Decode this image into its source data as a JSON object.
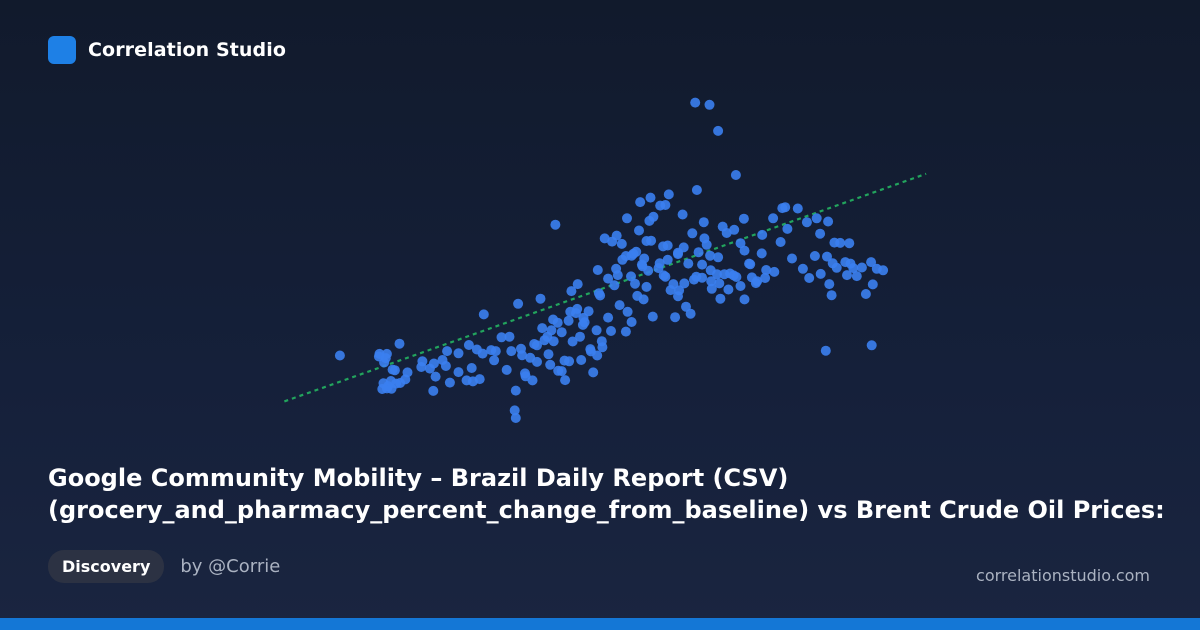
{
  "brand": {
    "name": "Correlation Studio",
    "logo_icon": "blue-rounded-square-logo",
    "accent": "#1e80e6"
  },
  "title": {
    "line1": "Google Community Mobility – Brazil Daily Report (CSV)",
    "line2": "(grocery_and_pharmacy_percent_change_from_baseline) vs Brent Crude Oil Prices:"
  },
  "tag": "Discovery",
  "author": "by @Corrie",
  "site": "correlationstudio.com",
  "colors": {
    "points": "#3b7ff0",
    "trendline": "#22a45d",
    "bottom_bar": "#1477d6"
  },
  "chart_data": {
    "type": "scatter",
    "title": "",
    "xlabel": "",
    "ylabel": "",
    "axes_visible": false,
    "grid": false,
    "xlim": [
      0,
      100
    ],
    "ylim": [
      0,
      100
    ],
    "trendline": {
      "x": [
        0,
        100
      ],
      "y": [
        8.7,
        72.4
      ],
      "style": "dotted"
    },
    "points": [
      [
        4.7,
        19.9
      ],
      [
        11.6,
        20.4
      ],
      [
        12.9,
        20.4
      ],
      [
        12.4,
        17.7
      ],
      [
        13.9,
        15.5
      ],
      [
        11.5,
        19.6
      ],
      [
        12.7,
        19.1
      ],
      [
        15.1,
        23.6
      ],
      [
        16.5,
        14.6
      ],
      [
        14.3,
        15.3
      ],
      [
        19.1,
        18.1
      ],
      [
        21.4,
        13.3
      ],
      [
        23.9,
        11.4
      ],
      [
        23.2,
        16.6
      ],
      [
        21.0,
        8.8
      ],
      [
        25.4,
        14.7
      ],
      [
        27.7,
        16.0
      ],
      [
        29.6,
        20.5
      ],
      [
        29.1,
        12.5
      ],
      [
        27.9,
        11.8
      ],
      [
        31.6,
        18.4
      ],
      [
        33.8,
        15.4
      ],
      [
        31.9,
        21.3
      ],
      [
        34.3,
        25.8
      ],
      [
        37.0,
        14.3
      ],
      [
        39.1,
        17.9
      ],
      [
        36.5,
        20.0
      ],
      [
        35.4,
        8.9
      ],
      [
        38.3,
        12.1
      ],
      [
        41.4,
        17.0
      ],
      [
        42.8,
        15.1
      ],
      [
        40.9,
        25.8
      ],
      [
        44.7,
        18.1
      ],
      [
        45.3,
        24.3
      ],
      [
        43.4,
        15.0
      ],
      [
        44.0,
        12.2
      ],
      [
        41.9,
        31.2
      ],
      [
        47.4,
        30.3
      ],
      [
        46.8,
        18.5
      ],
      [
        49.6,
        19.9
      ],
      [
        45.9,
        33.2
      ],
      [
        48.4,
        21.9
      ],
      [
        50.4,
        24.4
      ],
      [
        48.9,
        14.6
      ],
      [
        52.0,
        27.6
      ],
      [
        53.5,
        35.7
      ],
      [
        51.5,
        31.8
      ],
      [
        54.6,
        27.4
      ],
      [
        54.9,
        33.6
      ],
      [
        57.7,
        37.5
      ],
      [
        55.6,
        30.4
      ],
      [
        58.2,
        41.4
      ],
      [
        59.3,
        32.1
      ],
      [
        61.5,
        44.6
      ],
      [
        60.3,
        47.3
      ],
      [
        56.6,
        38.6
      ],
      [
        62.4,
        40.4
      ],
      [
        63.2,
        31.9
      ],
      [
        65.1,
        35.2
      ],
      [
        64.8,
        42.5
      ],
      [
        66.9,
        44.6
      ],
      [
        67.9,
        44.3
      ],
      [
        65.9,
        33.0
      ],
      [
        63.9,
        40.3
      ],
      [
        67.3,
        52.3
      ],
      [
        70.5,
        45.4
      ],
      [
        69.6,
        40.8
      ],
      [
        69.3,
        51.2
      ],
      [
        71.1,
        37.7
      ],
      [
        72.5,
        40.6
      ],
      [
        73.4,
        45.0
      ],
      [
        73.9,
        44.5
      ],
      [
        75.3,
        37.5
      ],
      [
        76.6,
        44.4
      ],
      [
        72.2,
        58.3
      ],
      [
        77.3,
        42.6
      ],
      [
        78.9,
        44.2
      ],
      [
        80.5,
        46.1
      ],
      [
        81.6,
        55.5
      ],
      [
        83.6,
        50.3
      ],
      [
        85.5,
        47.1
      ],
      [
        86.6,
        44.2
      ],
      [
        88.6,
        45.5
      ],
      [
        87.6,
        51.1
      ],
      [
        89.7,
        50.9
      ],
      [
        91.4,
        47.4
      ],
      [
        92.9,
        49.2
      ],
      [
        91.0,
        55.3
      ],
      [
        92.0,
        55.2
      ],
      [
        90.7,
        48.8
      ],
      [
        93.8,
        48.7
      ],
      [
        94.9,
        44.8
      ],
      [
        94.3,
        47.3
      ],
      [
        95.8,
        47.5
      ],
      [
        97.7,
        42.2
      ],
      [
        98.4,
        47.1
      ],
      [
        99.5,
        46.6
      ],
      [
        96.5,
        39.2
      ],
      [
        97.4,
        49.2
      ],
      [
        90.5,
        38.8
      ],
      [
        89.5,
        21.4
      ],
      [
        93.2,
        45.1
      ],
      [
        97.5,
        23.1
      ],
      [
        88.5,
        58.1
      ],
      [
        93.6,
        55.1
      ],
      [
        90.1,
        42.3
      ],
      [
        69.2,
        98.5
      ],
      [
        66.7,
        99.2
      ],
      [
        70.7,
        90.3
      ],
      [
        73.8,
        76.5
      ],
      [
        67.0,
        71.8
      ],
      [
        59.4,
        63.4
      ],
      [
        58.7,
        62.1
      ],
      [
        60.6,
        66.9
      ],
      [
        42.3,
        60.9
      ],
      [
        54.8,
        62.9
      ],
      [
        53.9,
        54.9
      ],
      [
        49.7,
        46.7
      ],
      [
        50.9,
        56.6
      ],
      [
        52.2,
        55.6
      ],
      [
        55.6,
        51.2
      ],
      [
        57.5,
        47.9
      ],
      [
        56.4,
        52.4
      ],
      [
        57.4,
        48.4
      ],
      [
        58.5,
        46.5
      ],
      [
        60.5,
        48.8
      ],
      [
        61.9,
        49.9
      ],
      [
        59.0,
        55.9
      ],
      [
        61.1,
        54.1
      ],
      [
        63.7,
        52.1
      ],
      [
        65.5,
        48.7
      ],
      [
        66.2,
        58.2
      ],
      [
        68.7,
        54.6
      ],
      [
        70.7,
        50.7
      ],
      [
        69.5,
        43.2
      ],
      [
        68.3,
        56.6
      ],
      [
        72.8,
        45.6
      ],
      [
        75.3,
        52.8
      ],
      [
        76.3,
        48.5
      ],
      [
        79.1,
        46.7
      ],
      [
        78.3,
        51.9
      ],
      [
        74.6,
        55.1
      ],
      [
        73.5,
        59.3
      ],
      [
        63.7,
        51.7
      ],
      [
        61.9,
        54.4
      ],
      [
        58.2,
        55.8
      ],
      [
        56.9,
        59.1
      ],
      [
        54.6,
        51.1
      ],
      [
        55.9,
        51.8
      ],
      [
        52.9,
        47.1
      ],
      [
        53.0,
        57.5
      ],
      [
        57.8,
        50.3
      ],
      [
        61.2,
        45.0
      ],
      [
        62.9,
        42.3
      ],
      [
        63.7,
        38.5
      ],
      [
        66.5,
        43.7
      ],
      [
        67.9,
        48.4
      ],
      [
        69.4,
        46.6
      ],
      [
        70.9,
        42.5
      ],
      [
        71.8,
        45.4
      ],
      [
        74.6,
        41.7
      ],
      [
        76.1,
        48.7
      ],
      [
        77.5,
        43.2
      ],
      [
        64.7,
        53.8
      ],
      [
        56.2,
        42.4
      ],
      [
        49.9,
        39.4
      ],
      [
        51.5,
        44.0
      ],
      [
        52.6,
        41.9
      ],
      [
        53.2,
        45.1
      ],
      [
        54.0,
        49.9
      ],
      [
        55.5,
        44.7
      ],
      [
        50.1,
        38.7
      ],
      [
        48.1,
        33.8
      ],
      [
        47.2,
        31.7
      ],
      [
        46.1,
        34.5
      ],
      [
        44.6,
        30.8
      ],
      [
        43.4,
        27.2
      ],
      [
        41.6,
        27.8
      ],
      [
        40.4,
        24.7
      ],
      [
        39.1,
        23.1
      ],
      [
        37.9,
        19.2
      ],
      [
        36.3,
        22.0
      ],
      [
        34.6,
        21.3
      ],
      [
        32.9,
        25.6
      ],
      [
        31.1,
        21.6
      ],
      [
        27.2,
        23.2
      ],
      [
        25.4,
        20.6
      ],
      [
        23.4,
        21.3
      ],
      [
        22.6,
        18.5
      ],
      [
        21.1,
        17.4
      ],
      [
        20.4,
        15.8
      ],
      [
        18.9,
        16.3
      ],
      [
        16.1,
        12.4
      ],
      [
        15.2,
        11.3
      ],
      [
        14.5,
        11.1
      ],
      [
        13.6,
        11.9
      ],
      [
        13.1,
        10.3
      ],
      [
        12.3,
        11.2
      ],
      [
        12.9,
        9.6
      ],
      [
        13.7,
        9.5
      ],
      [
        12.1,
        9.4
      ],
      [
        28.6,
        21.8
      ],
      [
        29.8,
        32.8
      ],
      [
        38.6,
        23.5
      ],
      [
        40.0,
        28.5
      ],
      [
        42.7,
        30.2
      ],
      [
        43.9,
        18.3
      ],
      [
        46.6,
        25.8
      ],
      [
        48.5,
        21.2
      ],
      [
        50.5,
        22.5
      ],
      [
        47.1,
        29.5
      ],
      [
        41.1,
        20.3
      ],
      [
        39.7,
        37.7
      ],
      [
        44.9,
        33.6
      ],
      [
        35.8,
        36.1
      ],
      [
        35.2,
        2.7
      ],
      [
        35.4,
        0.3
      ],
      [
        37.1,
        13.4
      ],
      [
        26.8,
        12.1
      ],
      [
        49.5,
        27.8
      ],
      [
        46.2,
        42.3
      ],
      [
        45.1,
        40.1
      ],
      [
        42.0,
        24.4
      ],
      [
        57.1,
        68.0
      ],
      [
        58.9,
        69.4
      ],
      [
        62.1,
        70.4
      ],
      [
        61.5,
        67.1
      ],
      [
        64.5,
        64.1
      ],
      [
        68.2,
        61.7
      ],
      [
        71.5,
        60.3
      ],
      [
        75.2,
        62.8
      ],
      [
        78.4,
        57.7
      ],
      [
        81.9,
        66.1
      ],
      [
        82.4,
        66.4
      ],
      [
        84.6,
        66.0
      ],
      [
        87.9,
        62.9
      ],
      [
        89.9,
        61.9
      ],
      [
        86.2,
        61.7
      ],
      [
        82.8,
        59.6
      ],
      [
        80.3,
        62.9
      ]
    ]
  }
}
